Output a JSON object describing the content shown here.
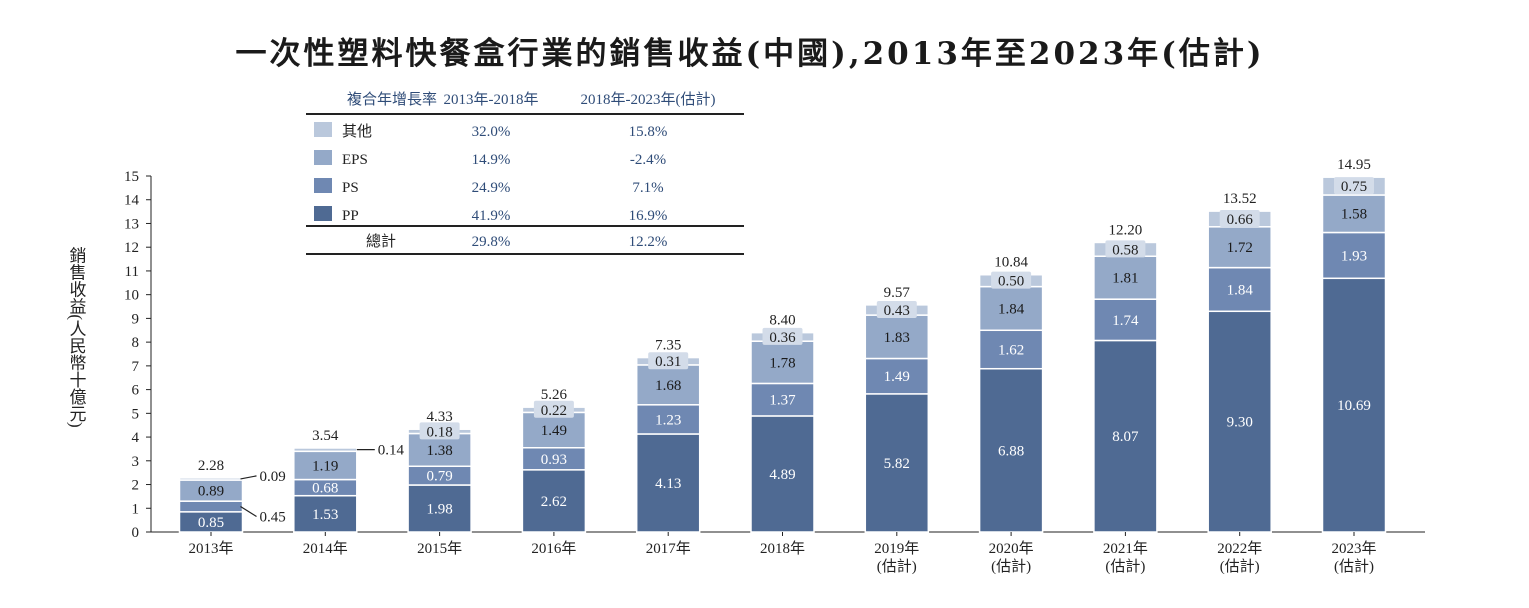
{
  "chart_data": {
    "type": "bar",
    "stacked": true,
    "title": "一次性塑料快餐盒行業的銷售收益(中國),2013年至2023年(估計)",
    "ylabel": "銷售收益(人民幣十億元)",
    "ylim": [
      0,
      15
    ],
    "yticks": [
      "0",
      "1",
      "2",
      "3",
      "4",
      "5",
      "6",
      "7",
      "8",
      "9",
      "10",
      "11",
      "12",
      "13",
      "14",
      "15"
    ],
    "categories": [
      [
        "2013年"
      ],
      [
        "2014年"
      ],
      [
        "2015年"
      ],
      [
        "2016年"
      ],
      [
        "2017年"
      ],
      [
        "2018年"
      ],
      [
        "2019年",
        "(估計)"
      ],
      [
        "2020年",
        "(估計)"
      ],
      [
        "2021年",
        "(估計)"
      ],
      [
        "2022年",
        "(估計)"
      ],
      [
        "2023年",
        "(估計)"
      ]
    ],
    "series": [
      {
        "name": "PP",
        "color": "#4f6a93",
        "labels": [
          "0.85",
          "1.53",
          "1.98",
          "2.62",
          "4.13",
          "4.89",
          "5.82",
          "6.88",
          "8.07",
          "9.30",
          "10.69"
        ],
        "values": [
          0.85,
          1.53,
          1.98,
          2.62,
          4.13,
          4.89,
          5.82,
          6.88,
          8.07,
          9.3,
          10.69
        ]
      },
      {
        "name": "PS",
        "color": "#6f88b2",
        "labels": [
          "0.45",
          "0.68",
          "0.79",
          "0.93",
          "1.23",
          "1.37",
          "1.49",
          "1.62",
          "1.74",
          "1.84",
          "1.93"
        ],
        "values": [
          0.45,
          0.68,
          0.79,
          0.93,
          1.23,
          1.37,
          1.49,
          1.62,
          1.74,
          1.84,
          1.93
        ]
      },
      {
        "name": "EPS",
        "color": "#94a9c8",
        "labels": [
          "0.89",
          "1.19",
          "1.38",
          "1.49",
          "1.68",
          "1.78",
          "1.83",
          "1.84",
          "1.81",
          "1.72",
          "1.58"
        ],
        "values": [
          0.89,
          1.19,
          1.38,
          1.49,
          1.68,
          1.78,
          1.83,
          1.84,
          1.81,
          1.72,
          1.58
        ]
      },
      {
        "name": "其他",
        "color": "#bac8dc",
        "labels": [
          "0.09",
          "0.14",
          "0.18",
          "0.22",
          "0.31",
          "0.36",
          "0.43",
          "0.50",
          "0.58",
          "0.66",
          "0.75"
        ],
        "values": [
          0.09,
          0.14,
          0.18,
          0.22,
          0.31,
          0.36,
          0.43,
          0.5,
          0.58,
          0.66,
          0.75
        ]
      }
    ],
    "totals": [
      "2.28",
      "3.54",
      "4.33",
      "5.26",
      "7.35",
      "8.40",
      "9.57",
      "10.84",
      "12.20",
      "13.52",
      "14.95"
    ],
    "cagr_table": {
      "headers": [
        "複合年增長率",
        "2013年-2018年",
        "2018年-2023年(估計)"
      ],
      "rows": [
        {
          "label": "其他",
          "color": "#bac8dc",
          "a": "32.0%",
          "b": "15.8%"
        },
        {
          "label": "EPS",
          "color": "#94a9c8",
          "a": "14.9%",
          "b": "-2.4%"
        },
        {
          "label": "PS",
          "color": "#6f88b2",
          "a": "24.9%",
          "b": "7.1%"
        },
        {
          "label": "PP",
          "color": "#4f6a93",
          "a": "41.9%",
          "b": "16.9%"
        }
      ],
      "total": {
        "label": "總計",
        "a": "29.8%",
        "b": "12.2%"
      }
    },
    "text_color": "#2f4c78"
  }
}
